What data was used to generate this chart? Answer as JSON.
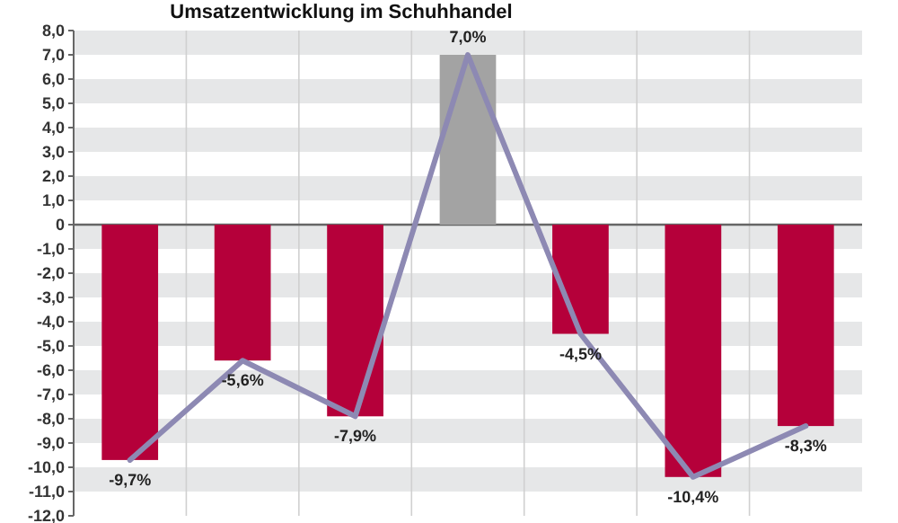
{
  "chart_data": {
    "type": "bar",
    "title": "Umsatzentwicklung im Schuhhandel",
    "categories": [
      null,
      null,
      null,
      null,
      null,
      null,
      null
    ],
    "series": [
      {
        "colors": [
          "#b5003a",
          "#b5003a",
          "#b5003a",
          "#a3a3a3",
          "#b5003a",
          "#b5003a",
          "#b5003a"
        ],
        "values": [
          -9.7,
          -5.6,
          -7.9,
          7.0,
          -4.5,
          -10.4,
          -8.3
        ],
        "value_labels": [
          "-9,7%",
          "-5,6%",
          "-7,9%",
          "7,0%",
          "-4,5%",
          "-10,4%",
          "-8,3%"
        ]
      },
      {
        "type": "line",
        "color": "#8d89b3",
        "values": [
          -9.7,
          -5.6,
          -7.9,
          7.0,
          -4.5,
          -10.4,
          -8.3
        ]
      }
    ],
    "ylim": [
      -12,
      8
    ],
    "yticks": [
      {
        "value": 8,
        "label": "8,0"
      },
      {
        "value": 7,
        "label": "7,0"
      },
      {
        "value": 6,
        "label": "6,0"
      },
      {
        "value": 5,
        "label": "5,0"
      },
      {
        "value": 4,
        "label": "4,0"
      },
      {
        "value": 3,
        "label": "3,0"
      },
      {
        "value": 2,
        "label": "2,0"
      },
      {
        "value": 1,
        "label": "1,0"
      },
      {
        "value": 0,
        "label": "0"
      },
      {
        "value": -1,
        "label": "-1,0"
      },
      {
        "value": -2,
        "label": "-2,0"
      },
      {
        "value": -3,
        "label": "-3,0"
      },
      {
        "value": -4,
        "label": "-4,0"
      },
      {
        "value": -5,
        "label": "-5,0"
      },
      {
        "value": -6,
        "label": "-6,0"
      },
      {
        "value": -7,
        "label": "-7,0"
      },
      {
        "value": -8,
        "label": "-8,0"
      },
      {
        "value": -9,
        "label": "-9,0"
      },
      {
        "value": -10,
        "label": "-10,0"
      },
      {
        "value": -11,
        "label": "-11,0"
      },
      {
        "value": -12,
        "label": "-12,0"
      }
    ],
    "grid": true,
    "line_style": "solid",
    "marker": "none"
  }
}
